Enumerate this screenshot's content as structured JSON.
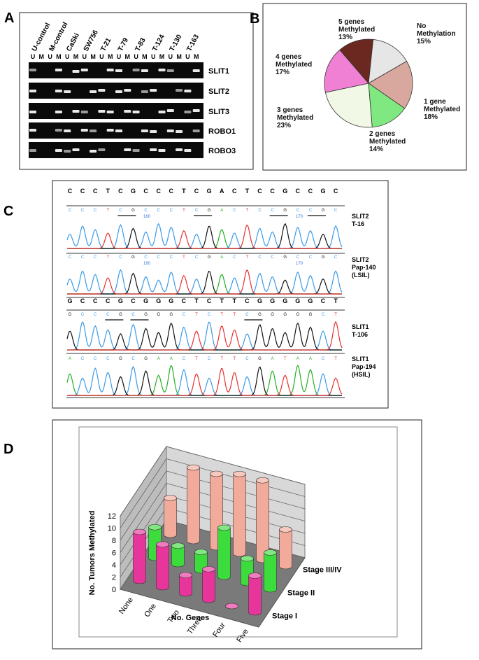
{
  "panel_labels": [
    "A",
    "B",
    "C",
    "D"
  ],
  "gel": {
    "lanes": [
      "U-control",
      "M-control",
      "CaSki",
      "SW756",
      "T-21",
      "T-79",
      "T-83",
      "T-124",
      "T-130",
      "T-163"
    ],
    "lane_headers": [
      "U",
      "M"
    ],
    "genes": [
      "SLIT1",
      "SLIT2",
      "SLIT3",
      "ROBO1",
      "ROBO3"
    ]
  },
  "sequencing": {
    "reference_bases": [
      [
        "C",
        "C",
        "C",
        "T",
        "C",
        "G",
        "C",
        "C",
        "C",
        "T",
        "C",
        "G",
        "A",
        "C",
        "T",
        "C",
        "C",
        "G",
        "C",
        "C",
        "G",
        "C"
      ],
      [
        "G",
        "C",
        "C",
        "C",
        "G",
        "C",
        "G",
        "G",
        "G",
        "C",
        "T",
        "C",
        "T",
        "T",
        "C",
        "G",
        "G",
        "G",
        "G",
        "G",
        "C",
        "T"
      ]
    ],
    "tracks": [
      {
        "label_lines": [
          "SLIT2",
          "T-16"
        ],
        "markers": [
          160,
          170
        ],
        "bases": [
          "C",
          "C",
          "C",
          "T",
          "C",
          "G",
          "C",
          "C",
          "C",
          "T",
          "C",
          "G",
          "A",
          "C",
          "T",
          "C",
          "C",
          "G",
          "C",
          "C",
          "G",
          "C"
        ]
      },
      {
        "label_lines": [
          "SLIT2",
          "Pap-140",
          "(LSIL)"
        ],
        "markers": [
          160,
          170
        ],
        "bases": [
          "C",
          "C",
          "C",
          "T",
          "C",
          "G",
          "C",
          "C",
          "C",
          "T",
          "C",
          "G",
          "A",
          "C",
          "T",
          "C",
          "C",
          "G",
          "C",
          "C",
          "G",
          "C"
        ]
      },
      {
        "label_lines": [
          "SLIT1",
          "T-106"
        ],
        "bases": [
          "G",
          "C",
          "C",
          "C",
          "G",
          "C",
          "G",
          "G",
          "G",
          "C",
          "T",
          "C",
          "T",
          "T",
          "C",
          "G",
          "G",
          "G",
          "G",
          "G",
          "C",
          "T"
        ]
      },
      {
        "label_lines": [
          "SLIT1",
          "Pap-194",
          "(HSIL)"
        ],
        "bases": [
          "A",
          "C",
          "C",
          "C",
          "G",
          "C",
          "G",
          "A",
          "A",
          "C",
          "T",
          "C",
          "T",
          "T",
          "C",
          "G",
          "A",
          "T",
          "A",
          "A",
          "C",
          "T"
        ]
      }
    ]
  },
  "chart_data": [
    {
      "type": "pie",
      "categories": [
        "No Methylation",
        "1 gene Methylated",
        "2 genes Methylated",
        "3 genes Methylated",
        "4 genes Methylated",
        "5 genes Methylated"
      ],
      "values": [
        15,
        18,
        14,
        23,
        17,
        13
      ],
      "value_labels": [
        "15%",
        "18%",
        "14%",
        "23%",
        "17%",
        "13%"
      ],
      "colors": [
        "#e6e6e6",
        "#d8a89e",
        "#80e880",
        "#f2f8e6",
        "#f080d4",
        "#6a2820"
      ]
    },
    {
      "type": "bar3d",
      "xlabel": "No. Genes",
      "ylabel": "No. Tumors Methylated",
      "categories": [
        "None",
        "One",
        "Two",
        "Three",
        "Four",
        "Five"
      ],
      "series": [
        {
          "name": "Stage I",
          "color": "#e8359c",
          "values": [
            8,
            7,
            3,
            5,
            0,
            6
          ]
        },
        {
          "name": "Stage II",
          "color": "#3ddc3d",
          "values": [
            5,
            3,
            3,
            8,
            4,
            6
          ]
        },
        {
          "name": "Stage III/IV",
          "color": "#f2aa9a",
          "values": [
            6,
            12,
            12,
            13,
            13,
            6
          ]
        }
      ],
      "ylim": [
        0,
        12
      ],
      "yticks": [
        0,
        2,
        4,
        6,
        8,
        10,
        12
      ],
      "grid": true
    }
  ]
}
